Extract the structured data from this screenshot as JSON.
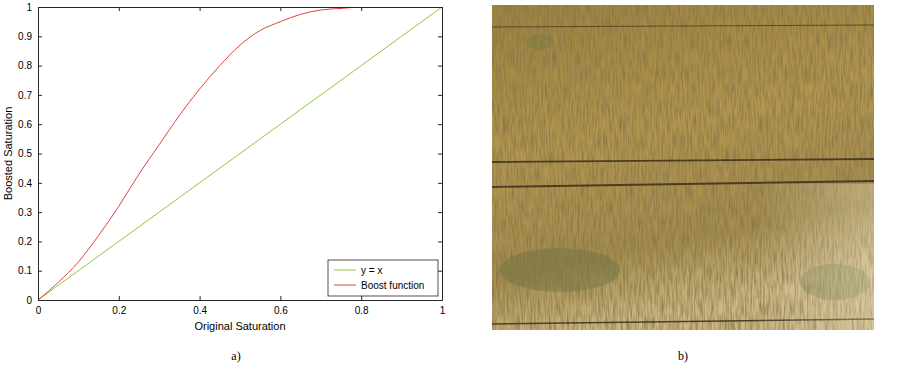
{
  "chart_data": {
    "type": "line",
    "x_label": "Original Saturation",
    "y_label": "Boosted Saturation",
    "x": [
      0,
      0.05,
      0.1,
      0.15,
      0.2,
      0.25,
      0.3,
      0.35,
      0.4,
      0.45,
      0.5,
      0.55,
      0.6,
      0.65,
      0.7,
      0.75,
      0.8,
      0.85,
      0.9,
      0.95,
      1
    ],
    "series": [
      {
        "name": "y = x",
        "color": "#8dc63f",
        "values": [
          0,
          0.05,
          0.1,
          0.15,
          0.2,
          0.25,
          0.3,
          0.35,
          0.4,
          0.45,
          0.5,
          0.55,
          0.6,
          0.65,
          0.7,
          0.75,
          0.8,
          0.85,
          0.9,
          0.95,
          1
        ]
      },
      {
        "name": "Boost function",
        "color": "#e0443e",
        "values": [
          0,
          0.06,
          0.13,
          0.22,
          0.32,
          0.43,
          0.53,
          0.63,
          0.72,
          0.8,
          0.87,
          0.92,
          0.95,
          0.975,
          0.99,
          0.995,
          1,
          1,
          1,
          1,
          1
        ]
      }
    ],
    "xlim": [
      0,
      1
    ],
    "ylim": [
      0,
      1
    ],
    "xticks": [
      0,
      0.2,
      0.4,
      0.6,
      0.8,
      1
    ],
    "yticks": [
      0,
      0.1,
      0.2,
      0.3,
      0.4,
      0.5,
      0.6,
      0.7,
      0.8,
      0.9,
      1
    ],
    "grid": false,
    "legend": "lower right"
  },
  "panel_labels": [
    "a)",
    "b)"
  ]
}
